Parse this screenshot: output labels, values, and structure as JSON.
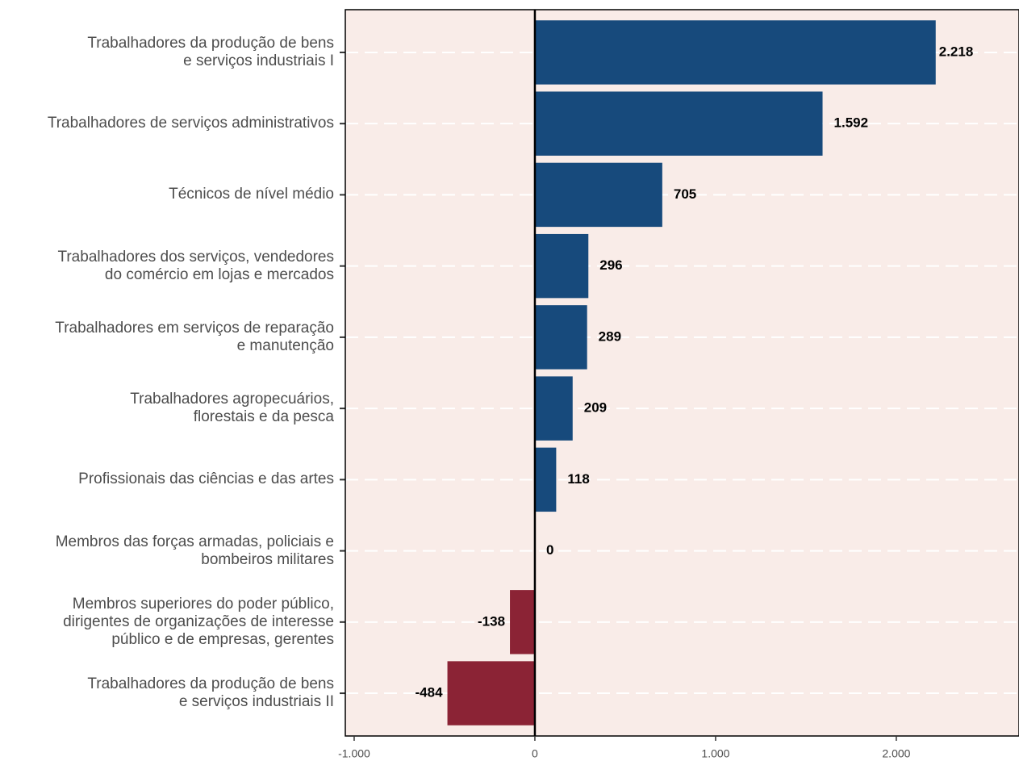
{
  "chart_data": {
    "type": "bar",
    "orientation": "horizontal",
    "categories": [
      "Trabalhadores da produção de bens\ne serviços industriais I",
      "Trabalhadores de serviços administrativos",
      "Técnicos de nível médio",
      "Trabalhadores dos serviços, vendedores\ndo comércio em lojas e mercados",
      "Trabalhadores em serviços de reparação\ne manutenção",
      "Trabalhadores agropecuários,\nflorestais e da pesca",
      "Profissionais das ciências e das artes",
      "Membros das forças armadas, policiais e\nbombeiros militares",
      "Membros superiores do poder público,\ndirigentes de organizações de interesse\npúblico e de empresas, gerentes",
      "Trabalhadores da produção de bens\ne serviços industriais II"
    ],
    "values": [
      2218,
      1592,
      705,
      296,
      289,
      209,
      118,
      0,
      -138,
      -484
    ],
    "value_labels": [
      "2.218",
      "1.592",
      "705",
      "296",
      "289",
      "209",
      "118",
      "0",
      "-138",
      "-484"
    ],
    "positive_color": "#174a7c",
    "negative_color": "#8b2335",
    "background": "#f9ece8",
    "xlim": [
      -1049,
      2679
    ],
    "xticks": [
      {
        "value": -1000,
        "label": "-1.000"
      },
      0,
      {
        "value": 1000,
        "label": "1.000"
      },
      {
        "value": 2000,
        "label": "2.000"
      }
    ],
    "grid": true
  }
}
